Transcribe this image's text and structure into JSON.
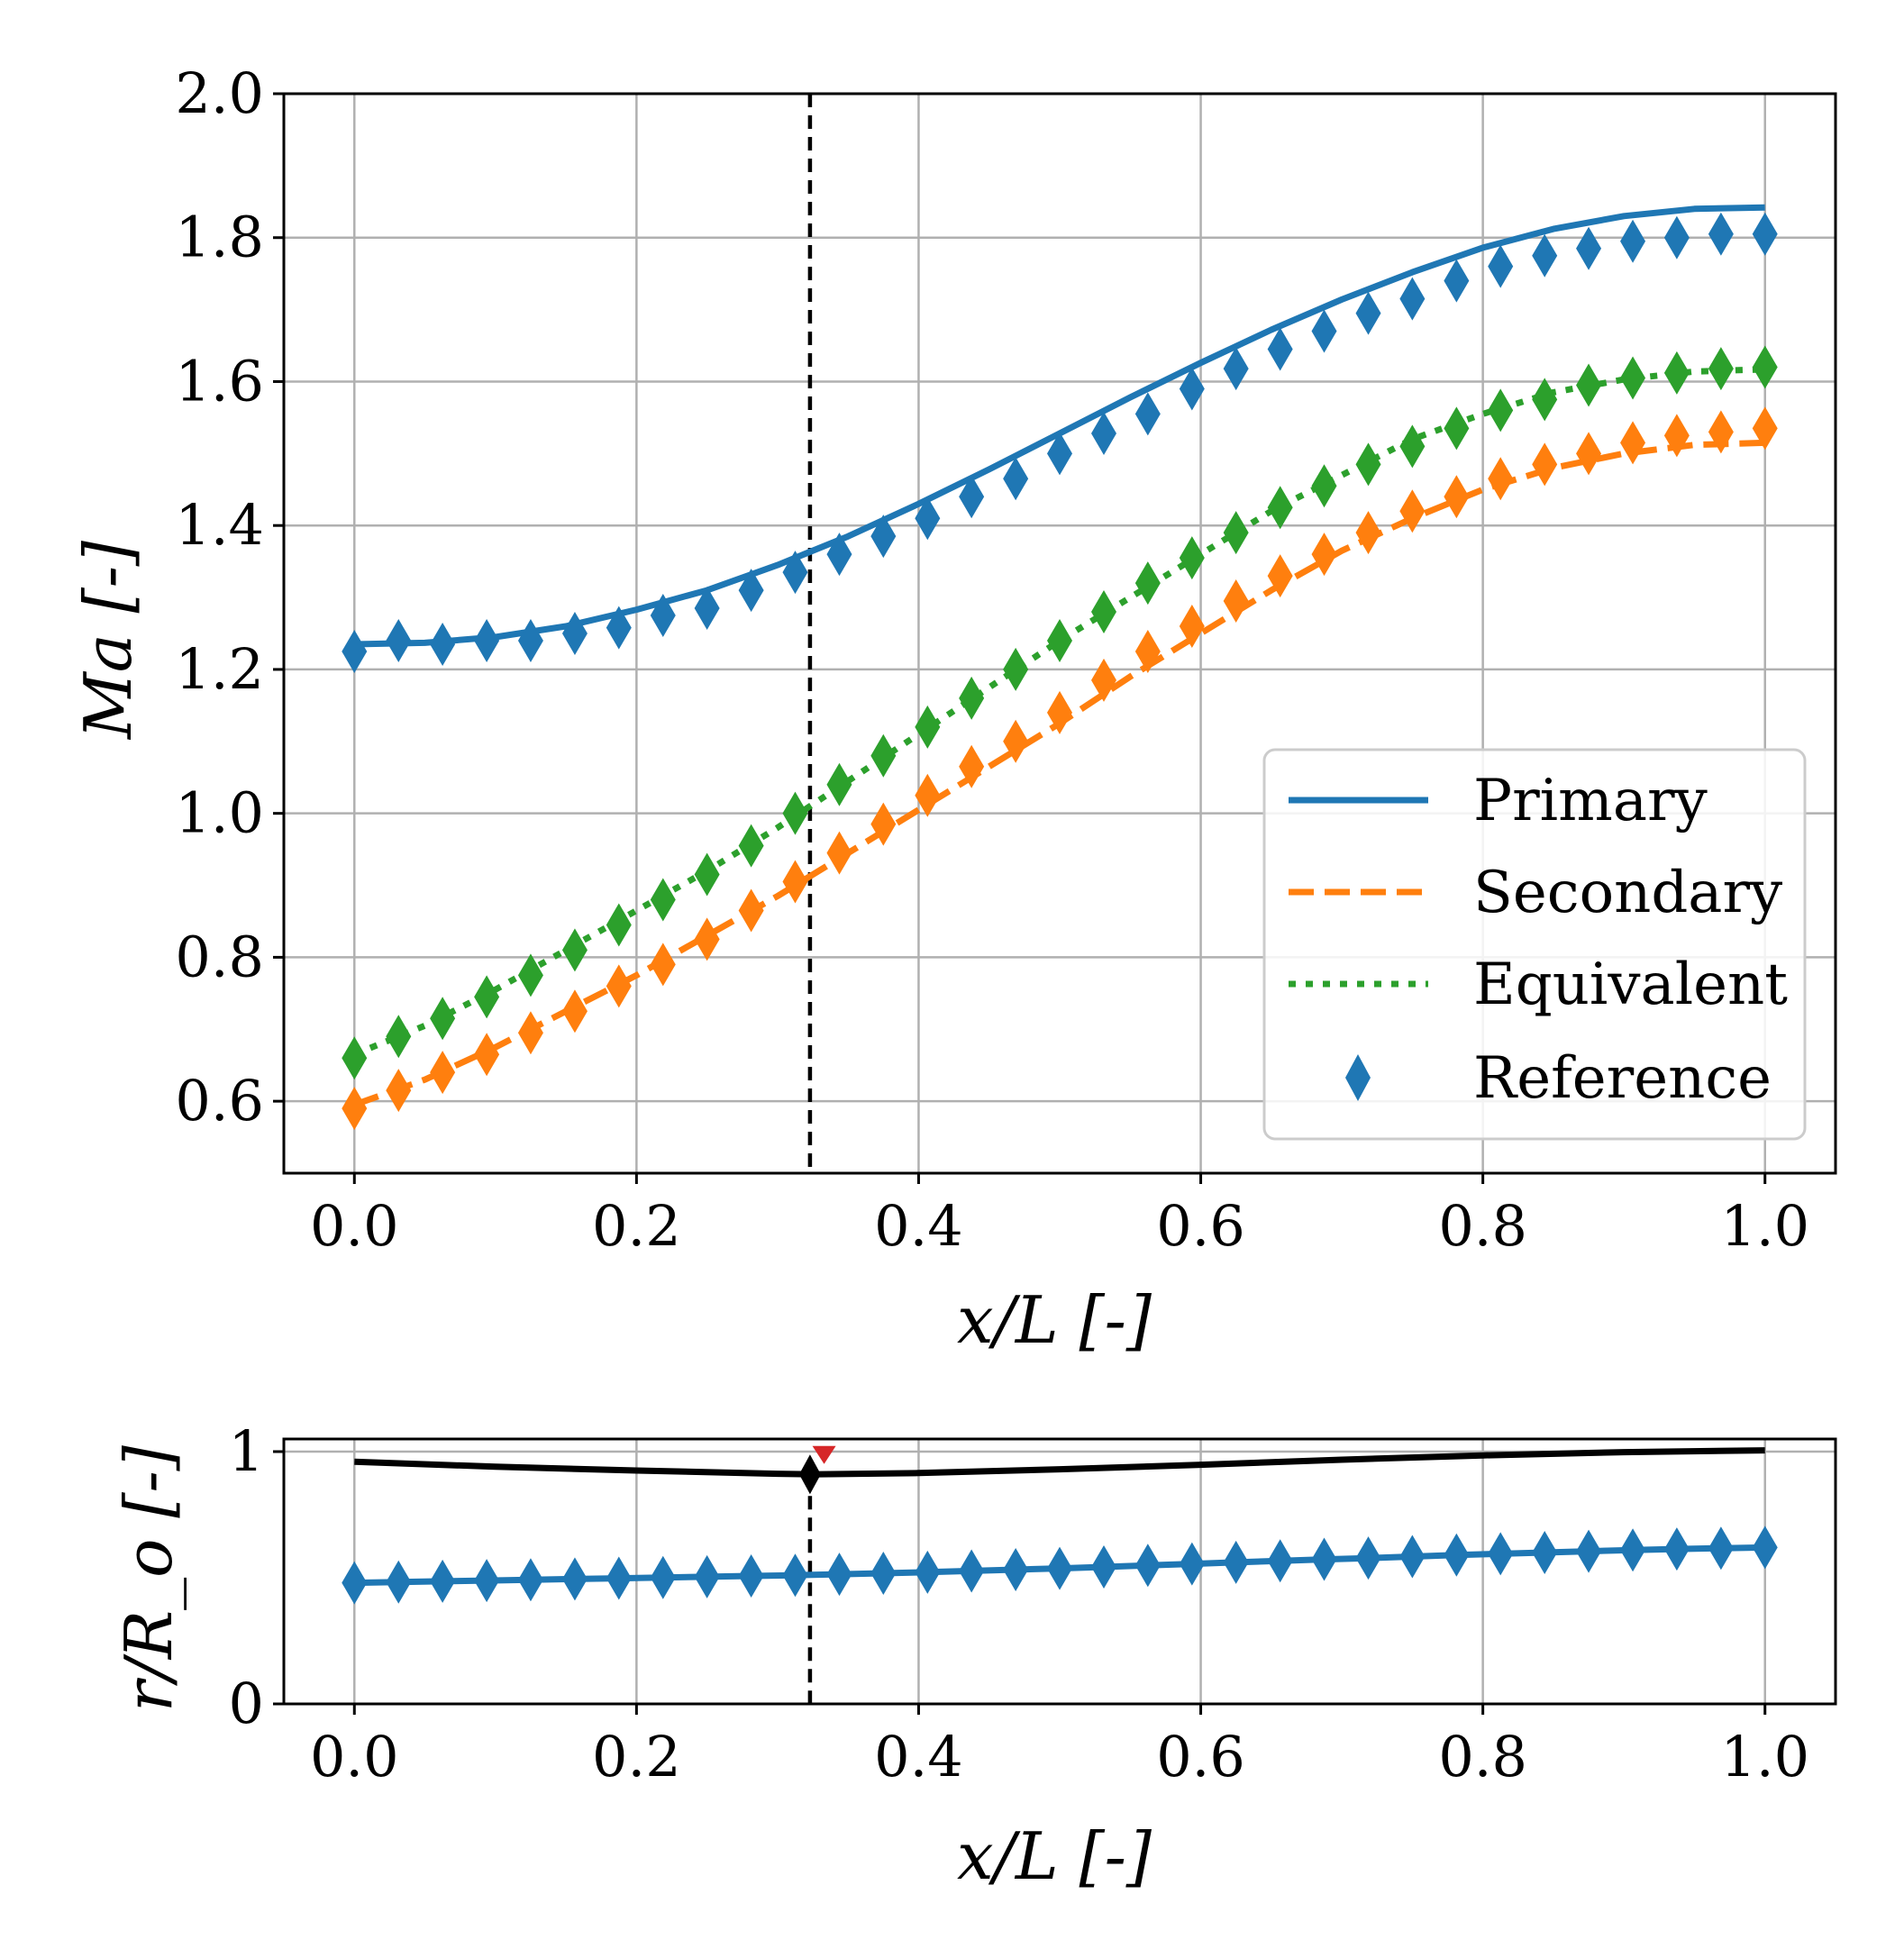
{
  "chart_data": [
    {
      "type": "line",
      "title": "",
      "xlabel": "x/L [-]",
      "ylabel": "Ma [-]",
      "xlim": [
        -0.05,
        1.05
      ],
      "ylim": [
        0.5,
        2.0
      ],
      "xticks": [
        "0.0",
        "0.2",
        "0.4",
        "0.6",
        "0.8",
        "1.0"
      ],
      "yticks": [
        "0.6",
        "0.8",
        "1.0",
        "1.2",
        "1.4",
        "1.6",
        "1.8",
        "2.0"
      ],
      "grid": true,
      "legend_position": "lower-right",
      "vline_x": 0.323,
      "series": [
        {
          "name": "Primary",
          "style": "solid",
          "color": "#1f77b4",
          "x": [
            0.0,
            0.05,
            0.1,
            0.15,
            0.2,
            0.25,
            0.3,
            0.35,
            0.4,
            0.45,
            0.5,
            0.55,
            0.6,
            0.65,
            0.7,
            0.75,
            0.8,
            0.85,
            0.9,
            0.95,
            1.0
          ],
          "y": [
            1.235,
            1.237,
            1.245,
            1.26,
            1.283,
            1.31,
            1.345,
            1.385,
            1.43,
            1.478,
            1.528,
            1.578,
            1.626,
            1.672,
            1.714,
            1.752,
            1.786,
            1.812,
            1.83,
            1.84,
            1.842
          ]
        },
        {
          "name": "Secondary",
          "style": "dashed",
          "color": "#ff7f0e",
          "x": [
            0.0,
            0.05,
            0.1,
            0.15,
            0.2,
            0.25,
            0.3,
            0.35,
            0.4,
            0.45,
            0.5,
            0.55,
            0.6,
            0.65,
            0.7,
            0.75,
            0.8,
            0.85,
            0.9,
            0.95,
            1.0
          ],
          "y": [
            0.595,
            0.63,
            0.675,
            0.725,
            0.775,
            0.83,
            0.885,
            0.945,
            1.005,
            1.065,
            1.125,
            1.19,
            1.25,
            1.31,
            1.365,
            1.41,
            1.45,
            1.48,
            1.5,
            1.512,
            1.515
          ]
        },
        {
          "name": "Equivalent",
          "style": "dotted",
          "color": "#2ca02c",
          "x": [
            0.0,
            0.05,
            0.1,
            0.15,
            0.2,
            0.25,
            0.3,
            0.35,
            0.4,
            0.45,
            0.5,
            0.55,
            0.6,
            0.65,
            0.7,
            0.75,
            0.8,
            0.85,
            0.9,
            0.95,
            1.0
          ],
          "y": [
            0.665,
            0.705,
            0.755,
            0.81,
            0.865,
            0.92,
            0.98,
            1.045,
            1.11,
            1.175,
            1.24,
            1.3,
            1.36,
            1.42,
            1.47,
            1.52,
            1.555,
            1.585,
            1.603,
            1.614,
            1.617
          ]
        }
      ],
      "reference": {
        "name": "Reference",
        "marker": "diamond",
        "color": "#1f77b4",
        "x": [
          0.0,
          0.0313,
          0.0625,
          0.0938,
          0.125,
          0.1563,
          0.1875,
          0.2188,
          0.25,
          0.2813,
          0.3125,
          0.3438,
          0.375,
          0.4063,
          0.4375,
          0.4688,
          0.5,
          0.5313,
          0.5625,
          0.5938,
          0.625,
          0.6563,
          0.6875,
          0.7188,
          0.75,
          0.7813,
          0.8125,
          0.8438,
          0.875,
          0.9063,
          0.9375,
          0.9688,
          1.0
        ],
        "primary": [
          1.225,
          1.24,
          1.235,
          1.24,
          1.24,
          1.25,
          1.258,
          1.275,
          1.285,
          1.31,
          1.335,
          1.36,
          1.385,
          1.41,
          1.44,
          1.465,
          1.5,
          1.528,
          1.555,
          1.59,
          1.618,
          1.645,
          1.67,
          1.695,
          1.715,
          1.74,
          1.76,
          1.775,
          1.785,
          1.795,
          1.8,
          1.805,
          1.805
        ],
        "secondary": [
          0.59,
          0.615,
          0.64,
          0.665,
          0.695,
          0.725,
          0.76,
          0.79,
          0.825,
          0.865,
          0.905,
          0.945,
          0.985,
          1.025,
          1.065,
          1.1,
          1.14,
          1.185,
          1.225,
          1.26,
          1.295,
          1.33,
          1.36,
          1.39,
          1.42,
          1.44,
          1.465,
          1.485,
          1.5,
          1.515,
          1.525,
          1.53,
          1.535
        ],
        "equivalent": [
          0.66,
          0.69,
          0.715,
          0.745,
          0.775,
          0.81,
          0.845,
          0.88,
          0.915,
          0.955,
          1.0,
          1.04,
          1.08,
          1.12,
          1.16,
          1.2,
          1.24,
          1.28,
          1.32,
          1.355,
          1.39,
          1.425,
          1.455,
          1.485,
          1.51,
          1.535,
          1.56,
          1.575,
          1.595,
          1.605,
          1.612,
          1.618,
          1.62
        ]
      }
    },
    {
      "type": "line",
      "title": "",
      "xlabel": "x/L [-]",
      "ylabel": "r/R_o [-]",
      "xlim": [
        -0.05,
        1.05
      ],
      "ylim": [
        0,
        1.05
      ],
      "xticks": [
        "0.0",
        "0.2",
        "0.4",
        "0.6",
        "0.8",
        "1.0"
      ],
      "yticks": [
        "0",
        "1"
      ],
      "grid": true,
      "vline_x": 0.323,
      "outer_wall": {
        "color": "#000000",
        "x": [
          0.0,
          0.1,
          0.2,
          0.3,
          0.323,
          0.4,
          0.5,
          0.6,
          0.7,
          0.8,
          0.9,
          1.0
        ],
        "y": [
          0.96,
          0.94,
          0.925,
          0.912,
          0.91,
          0.915,
          0.93,
          0.948,
          0.968,
          0.985,
          0.998,
          1.005
        ]
      },
      "throat_marker": {
        "x": 0.323,
        "y": 0.91,
        "color": "#000000"
      },
      "red_marker": {
        "x": 0.333,
        "y": 0.99,
        "color": "#d62728"
      },
      "inner": {
        "color": "#1f77b4",
        "x": [
          0.0,
          0.0313,
          0.0625,
          0.0938,
          0.125,
          0.1563,
          0.1875,
          0.2188,
          0.25,
          0.2813,
          0.3125,
          0.3438,
          0.375,
          0.4063,
          0.4375,
          0.4688,
          0.5,
          0.5313,
          0.5625,
          0.5938,
          0.625,
          0.6563,
          0.6875,
          0.7188,
          0.75,
          0.7813,
          0.8125,
          0.8438,
          0.875,
          0.9063,
          0.9375,
          0.9688,
          1.0
        ],
        "y": [
          0.48,
          0.483,
          0.486,
          0.489,
          0.492,
          0.495,
          0.498,
          0.501,
          0.504,
          0.507,
          0.51,
          0.514,
          0.518,
          0.522,
          0.527,
          0.532,
          0.537,
          0.543,
          0.549,
          0.555,
          0.561,
          0.567,
          0.573,
          0.578,
          0.584,
          0.59,
          0.595,
          0.6,
          0.605,
          0.61,
          0.614,
          0.617,
          0.62
        ]
      }
    }
  ]
}
